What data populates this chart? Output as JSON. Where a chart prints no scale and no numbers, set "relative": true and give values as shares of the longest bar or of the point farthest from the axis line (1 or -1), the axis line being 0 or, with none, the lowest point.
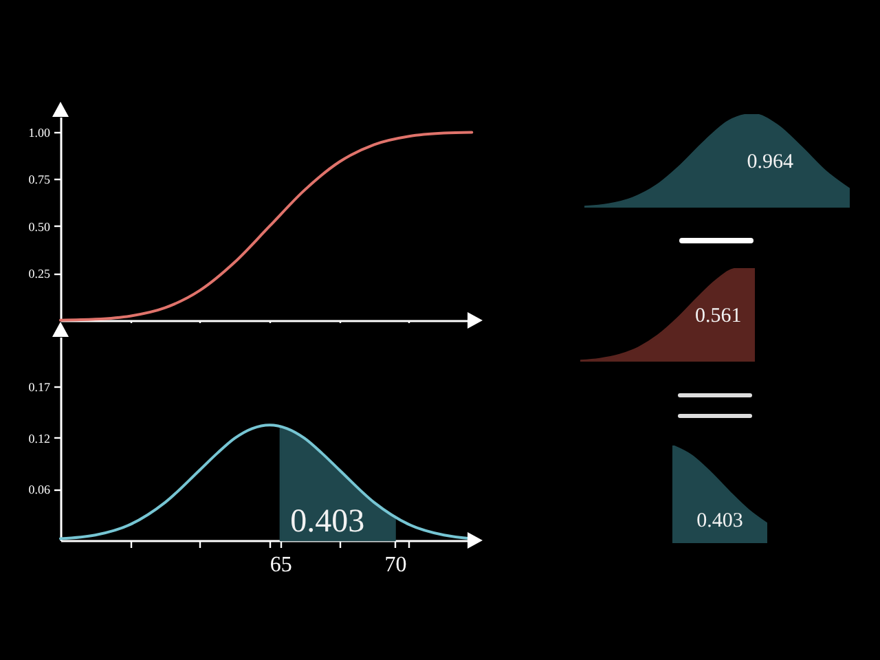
{
  "chart_data": [
    {
      "type": "line",
      "x": [
        55.41,
        56.93,
        58.45,
        59.97,
        61.49,
        63.01,
        64.53,
        66.05,
        67.57,
        69.09,
        70.61,
        72.13,
        73.35
      ],
      "values": [
        0.001,
        0.006,
        0.023,
        0.067,
        0.159,
        0.309,
        0.5,
        0.691,
        0.841,
        0.933,
        0.977,
        0.994,
        0.998
      ],
      "color": "#e0736b",
      "xlim": [
        55.41,
        73.4
      ],
      "xticks": [
        {
          "value": 58.45,
          "label": null
        },
        {
          "value": 61.49,
          "label": null
        },
        {
          "value": 64.53,
          "label": null
        },
        {
          "value": 67.57,
          "label": null
        },
        {
          "value": 70.61,
          "label": null
        }
      ],
      "ylim": [
        0,
        1.08
      ],
      "yticks": [
        {
          "value": 0.25,
          "label": "0.25"
        },
        {
          "value": 0.5,
          "label": "0.50"
        },
        {
          "value": 0.75,
          "label": "0.75"
        },
        {
          "value": 1,
          "label": "1.00"
        }
      ],
      "tick_labels": "y",
      "grid": false
    },
    {
      "type": "line",
      "series": [
        {
          "color": "#76c5d3",
          "x": [
            55.41,
            56.93,
            58.45,
            59.97,
            61.49,
            62.25,
            63.01,
            63.77,
            64.53,
            65.29,
            66.05,
            66.81,
            67.57,
            69.09,
            70.61,
            72.13,
            73.35
          ],
          "values": [
            0.002,
            0.006,
            0.018,
            0.043,
            0.08,
            0.099,
            0.116,
            0.127,
            0.131,
            0.127,
            0.116,
            0.099,
            0.08,
            0.043,
            0.018,
            0.006,
            0.002
          ]
        },
        {
          "type": "area",
          "color": "#1f474d",
          "x": [
            65,
            66,
            67,
            68,
            69,
            70
          ],
          "values": [
            0.13,
            0.117,
            0.094,
            0.068,
            0.044,
            0.026
          ]
        }
      ],
      "xlim": [
        55.41,
        73.4
      ],
      "xticks": [
        {
          "value": 58.45,
          "label": null
        },
        {
          "value": 61.49,
          "label": null
        },
        {
          "value": 64.53,
          "label": null
        },
        65,
        {
          "value": 67.57,
          "label": null
        },
        70,
        {
          "value": 70.61,
          "label": null
        }
      ],
      "ylim": [
        0,
        0.231
      ],
      "yticks": [
        {
          "value": 0.0583,
          "label": "0.06"
        },
        {
          "value": 0.1166,
          "label": "0.12"
        },
        {
          "value": 0.175,
          "label": "0.17"
        }
      ],
      "annotations": [
        "0.403"
      ],
      "grid": false
    },
    {
      "type": "area",
      "relative": true,
      "categories": [
        null,
        null,
        null,
        null,
        null,
        null,
        null,
        null,
        null,
        null,
        null,
        null
      ],
      "values": [
        0.011,
        0.037,
        0.104,
        0.24,
        0.457,
        0.715,
        0.93,
        1,
        0.883,
        0.648,
        0.391,
        0.198
      ],
      "color": "#1f474d",
      "annotations": [
        "0.964"
      ]
    },
    {
      "type": "area",
      "relative": true,
      "categories": [
        null,
        null,
        null,
        null,
        null,
        null,
        null,
        null,
        null,
        null
      ],
      "values": [
        0.011,
        0.03,
        0.072,
        0.151,
        0.281,
        0.462,
        0.674,
        0.87,
        0.993,
        1
      ],
      "color": "#5a241f",
      "annotations": [
        "0.561"
      ]
    },
    {
      "type": "area",
      "relative": true,
      "categories": [
        null,
        null,
        null,
        null,
        null,
        null
      ],
      "values": [
        1,
        0.9,
        0.728,
        0.528,
        0.343,
        0.2
      ],
      "color": "#1f474d",
      "annotations": [
        "0.403"
      ]
    }
  ]
}
